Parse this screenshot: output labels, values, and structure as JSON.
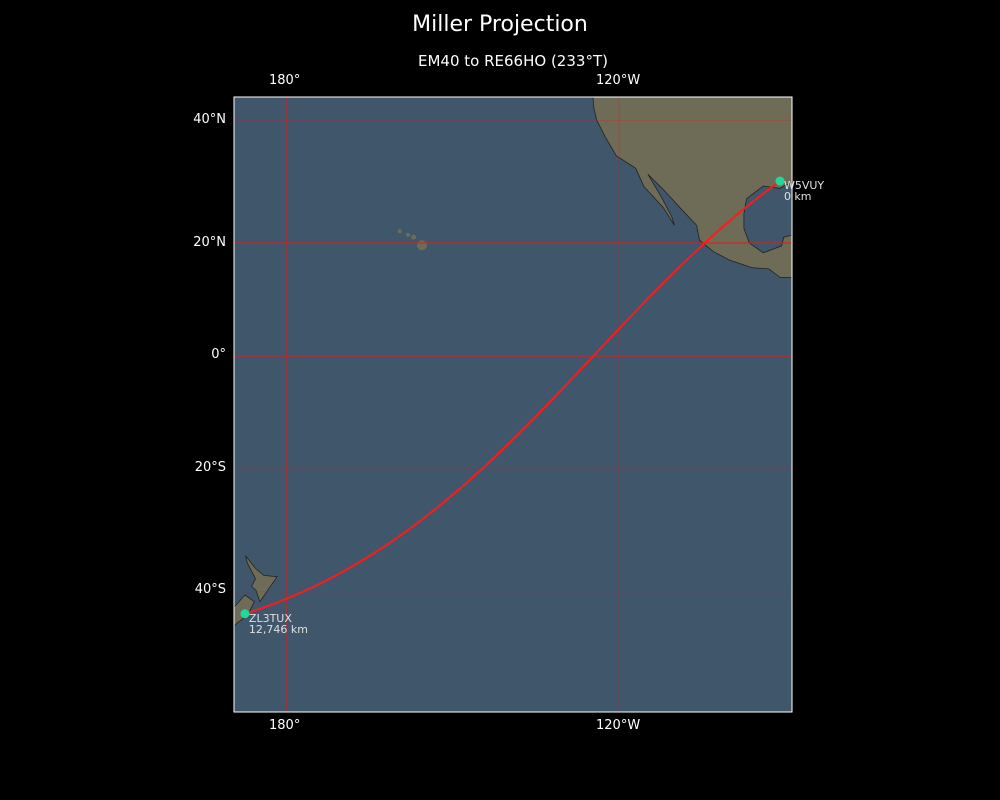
{
  "title": "Miller Projection",
  "subtitle": "EM40 to RE66HO (233°T)",
  "projection": "miller",
  "colors": {
    "ocean": "#3f566b",
    "land": "#6e6c57",
    "grid": "#d42020",
    "path": "#ff1a1a",
    "marker": "#1fd99a",
    "frame": "#ffffff"
  },
  "axes": {
    "top_lon_labels": [
      "180°",
      "120°W"
    ],
    "bottom_lon_labels": [
      "180°",
      "120°W"
    ],
    "lat_labels": [
      "40°N",
      "20°N",
      "0°",
      "20°S",
      "40°S"
    ],
    "lon_grid": [
      180,
      -120
    ],
    "lat_grid": [
      40,
      20,
      0,
      -20,
      -40
    ]
  },
  "stations": [
    {
      "call": "W5VUY",
      "distance": "0 km",
      "lat": 30.4,
      "lon": -91.0
    },
    {
      "call": "ZL3TUX",
      "distance": "12,746 km",
      "lat": -43.3,
      "lon": 172.6
    }
  ]
}
